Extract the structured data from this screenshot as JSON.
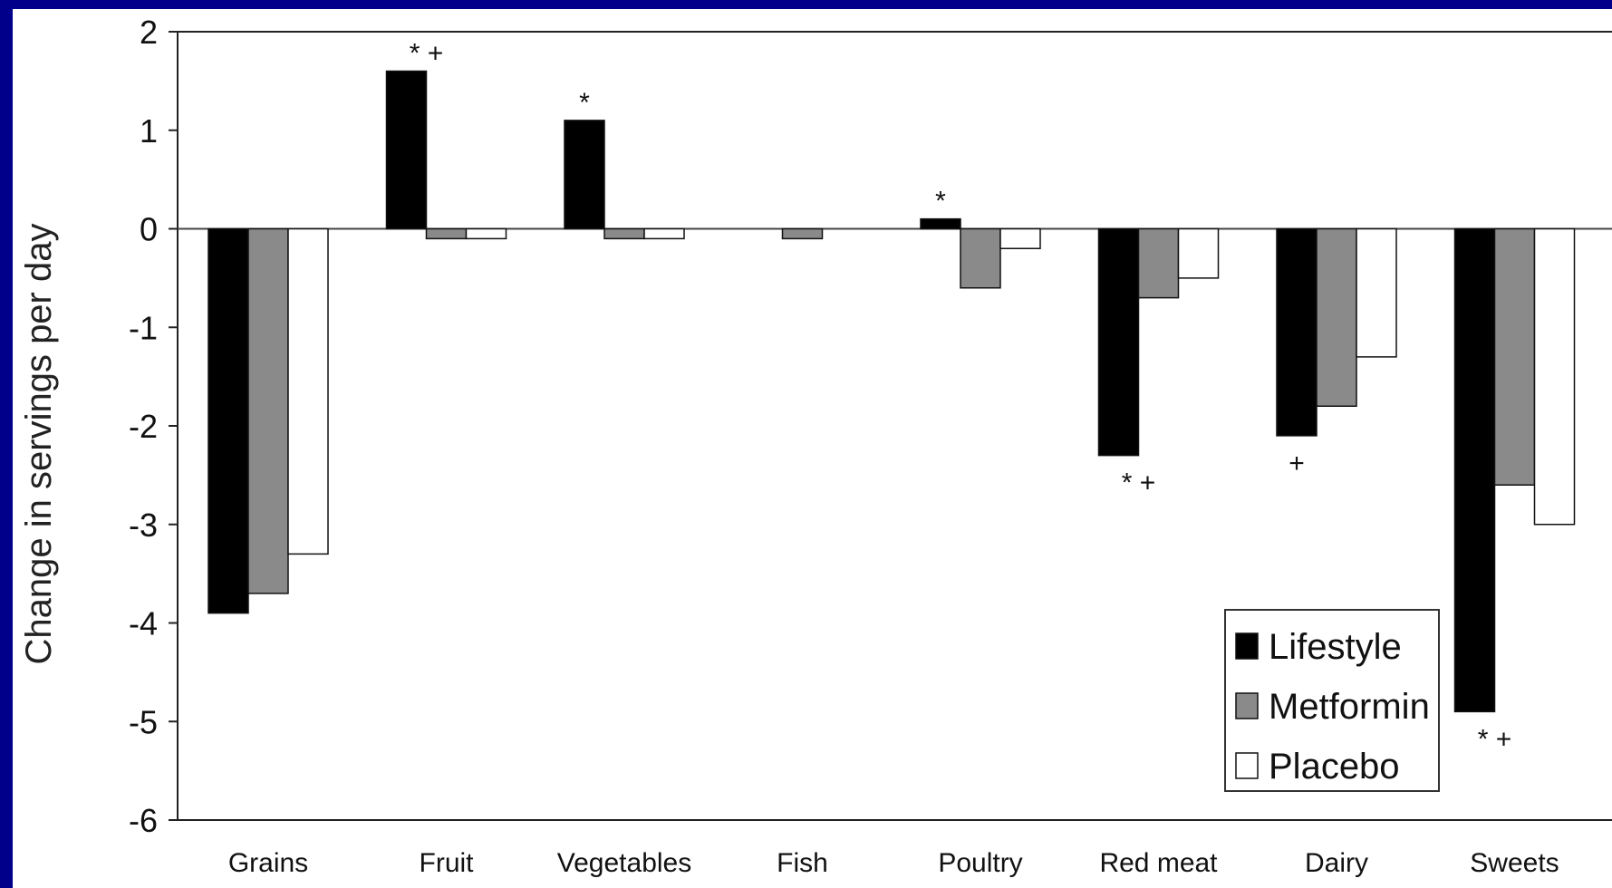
{
  "chart_data": {
    "type": "bar",
    "ylabel": "Change in servings per day",
    "xlabel": "",
    "ylim": [
      -6,
      2
    ],
    "yticks": [
      2,
      1,
      0,
      -1,
      -2,
      -3,
      -4,
      -5,
      -6
    ],
    "categories": [
      "Grains",
      "Fruit",
      "Vegetables",
      "Fish",
      "Poultry",
      "Red meat",
      "Dairy",
      "Sweets"
    ],
    "series": [
      {
        "name": "Lifestyle",
        "color": "#000000",
        "values": [
          -3.9,
          1.6,
          1.1,
          0.0,
          0.1,
          -2.3,
          -2.1,
          -4.9
        ]
      },
      {
        "name": "Metformin",
        "color": "#8a8a8a",
        "values": [
          -3.7,
          -0.1,
          -0.1,
          -0.1,
          -0.6,
          -0.7,
          -1.8,
          -2.6
        ]
      },
      {
        "name": "Placebo",
        "color": "#ffffff",
        "values": [
          -3.3,
          -0.1,
          -0.1,
          0.0,
          -0.2,
          -0.5,
          -1.3,
          -3.0
        ]
      }
    ],
    "significance_markers": [
      {
        "category": "Fruit",
        "text": "* +"
      },
      {
        "category": "Vegetables",
        "text": "*"
      },
      {
        "category": "Poultry",
        "text": "*"
      },
      {
        "category": "Red meat",
        "text": "* +"
      },
      {
        "category": "Dairy",
        "text": "+"
      },
      {
        "category": "Sweets",
        "text": "* +"
      }
    ],
    "legend_position": "bottom-right",
    "grid": false
  }
}
